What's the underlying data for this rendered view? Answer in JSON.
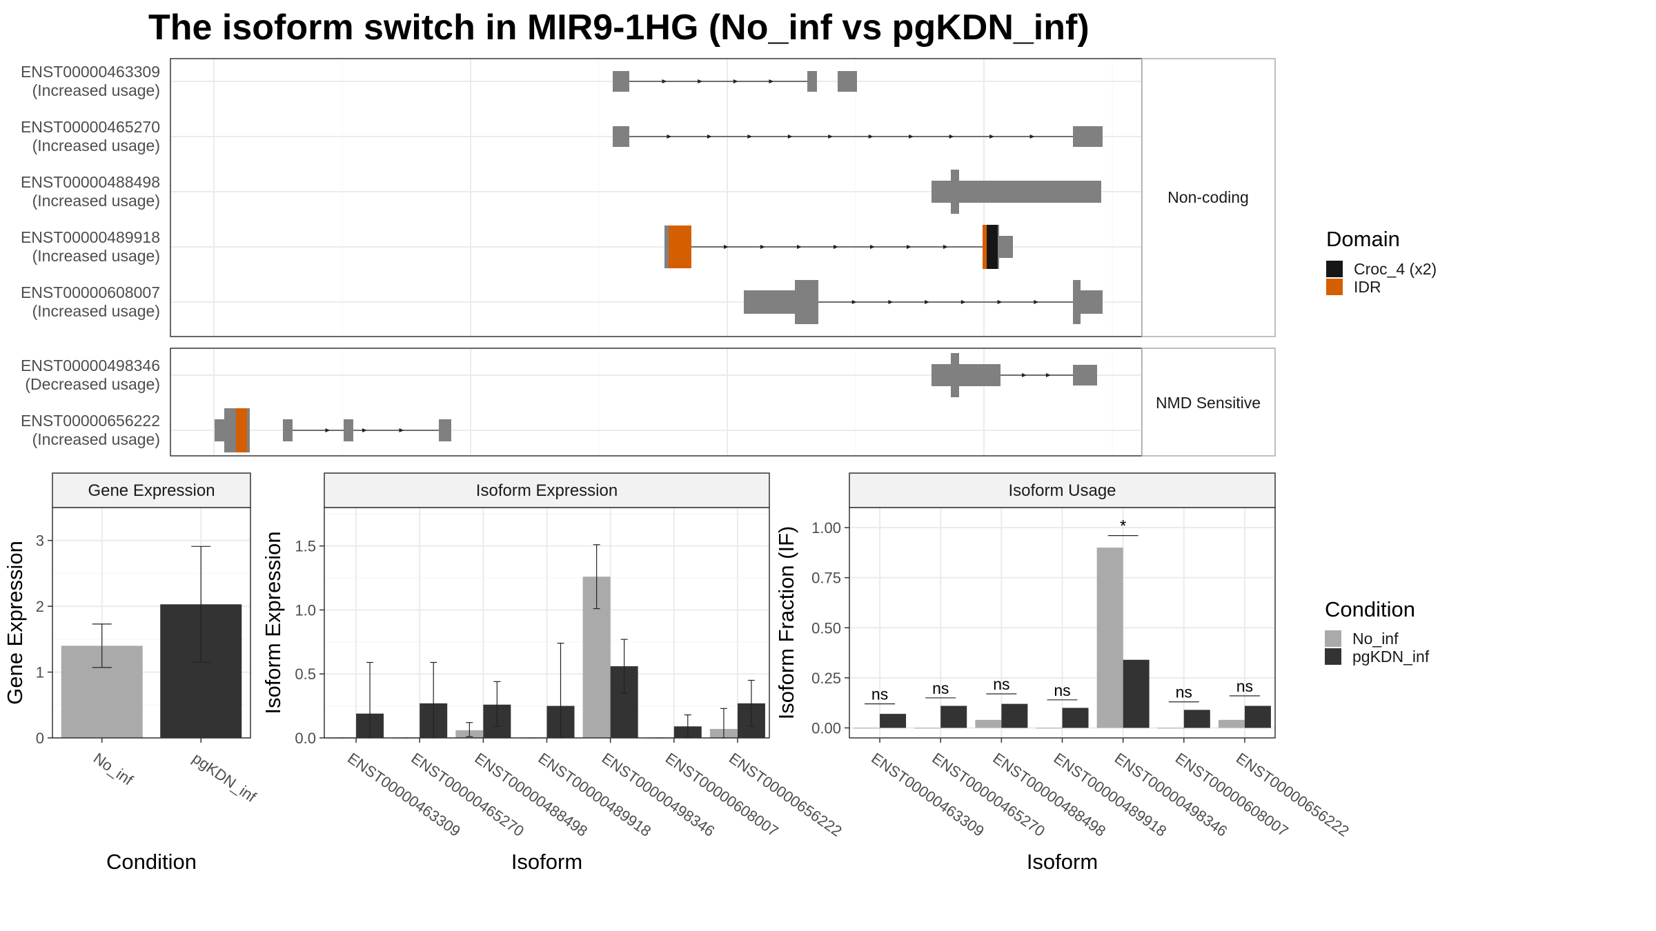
{
  "title": "The isoform switch in MIR9-1HG (No_inf vs pgKDN_inf)",
  "colors": {
    "no_inf": "#AAAAAA",
    "pgkdn_inf": "#333333",
    "exon": "#808080",
    "croc4": "#161616",
    "idr": "#D55E00",
    "strip_bg": "#F2F2F2",
    "panel_border": "#333333",
    "grid": "#EBEBEB"
  },
  "structure": {
    "facets": [
      {
        "label": "Non-coding",
        "transcripts": [
          {
            "id": "ENST00000463309",
            "usage": "(Increased usage)"
          },
          {
            "id": "ENST00000465270",
            "usage": "(Increased usage)"
          },
          {
            "id": "ENST00000488498",
            "usage": "(Increased usage)"
          },
          {
            "id": "ENST00000489918",
            "usage": "(Increased usage)"
          },
          {
            "id": "ENST00000608007",
            "usage": "(Increased usage)"
          }
        ]
      },
      {
        "label": "NMD Sensitive",
        "transcripts": [
          {
            "id": "ENST00000498346",
            "usage": "(Decreased usage)"
          },
          {
            "id": "ENST00000656222",
            "usage": "(Increased usage)"
          }
        ]
      }
    ],
    "domain_legend": {
      "title": "Domain",
      "items": [
        {
          "label": "Croc_4 (x2)",
          "color": "#161616"
        },
        {
          "label": "IDR",
          "color": "#D55E00"
        }
      ]
    }
  },
  "chart_data": [
    {
      "type": "bar",
      "title": "Gene Expression",
      "xlabel": "Condition",
      "ylabel": "Gene Expression",
      "ylim": [
        0,
        3.5
      ],
      "yticks": [
        0,
        1,
        2,
        3
      ],
      "categories": [
        "No_inf",
        "pgKDN_inf"
      ],
      "values": [
        1.4,
        2.03
      ],
      "error_low": [
        1.07,
        1.15
      ],
      "error_high": [
        1.73,
        2.91
      ]
    },
    {
      "type": "bar",
      "title": "Isoform Expression",
      "xlabel": "Isoform",
      "ylabel": "Isoform Expression",
      "ylim": [
        0,
        1.8
      ],
      "yticks": [
        0.0,
        0.5,
        1.0,
        1.5
      ],
      "categories": [
        "ENST00000463309",
        "ENST00000465270",
        "ENST00000488498",
        "ENST00000489918",
        "ENST00000498346",
        "ENST00000608007",
        "ENST00000656222"
      ],
      "series": [
        {
          "name": "No_inf",
          "values": [
            0.0,
            0.0,
            0.06,
            0.0,
            1.26,
            0.0,
            0.07
          ],
          "error_low": [
            0.0,
            0.0,
            0.01,
            0.0,
            1.01,
            0.0,
            0.0
          ],
          "error_high": [
            0.0,
            0.0,
            0.12,
            0.0,
            1.51,
            0.0,
            0.23
          ]
        },
        {
          "name": "pgKDN_inf",
          "values": [
            0.19,
            0.27,
            0.26,
            0.25,
            0.56,
            0.09,
            0.27
          ],
          "error_low": [
            0.0,
            0.0,
            0.09,
            0.0,
            0.35,
            0.0,
            0.09
          ],
          "error_high": [
            0.59,
            0.59,
            0.44,
            0.74,
            0.77,
            0.18,
            0.45
          ]
        }
      ]
    },
    {
      "type": "bar",
      "title": "Isoform Usage",
      "xlabel": "Isoform",
      "ylabel": "Isoform Fraction (IF)",
      "ylim": [
        -0.05,
        1.1
      ],
      "yticks": [
        0.0,
        0.25,
        0.5,
        0.75,
        1.0
      ],
      "categories": [
        "ENST00000463309",
        "ENST00000465270",
        "ENST00000488498",
        "ENST00000489918",
        "ENST00000498346",
        "ENST00000608007",
        "ENST00000656222"
      ],
      "series": [
        {
          "name": "No_inf",
          "values": [
            0.0,
            0.0,
            0.04,
            0.0,
            0.9,
            0.0,
            0.04
          ]
        },
        {
          "name": "pgKDN_inf",
          "values": [
            0.07,
            0.11,
            0.12,
            0.1,
            0.34,
            0.09,
            0.11
          ]
        }
      ],
      "significance": [
        "ns",
        "ns",
        "ns",
        "ns",
        "*",
        "ns",
        "ns"
      ],
      "significance_y": [
        0.12,
        0.15,
        0.17,
        0.14,
        0.96,
        0.13,
        0.16
      ]
    }
  ],
  "condition_legend": {
    "title": "Condition",
    "items": [
      {
        "label": "No_inf",
        "color": "#AAAAAA"
      },
      {
        "label": "pgKDN_inf",
        "color": "#333333"
      }
    ]
  }
}
